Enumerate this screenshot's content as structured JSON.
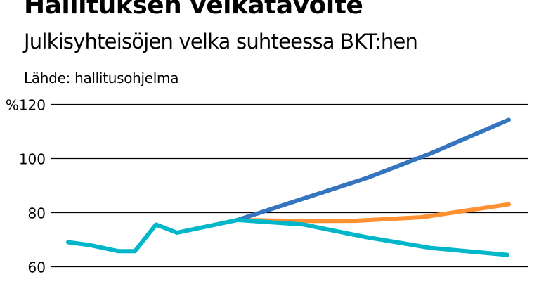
{
  "chart_data": {
    "type": "line",
    "title": "Hallituksen velkatavoite",
    "subtitle": "Julkisyhteisöjen velka suhteessa BKT:hen",
    "source": "Lähde: hallitusohjelma",
    "ylabel": "",
    "xlabel": "",
    "ylim": [
      60,
      120
    ],
    "yticks": [
      60,
      80,
      100,
      120
    ],
    "ytick_labels": [
      "60",
      "80",
      "100",
      "%120"
    ],
    "grid": true,
    "legend": "none",
    "series": [
      {
        "color": "#00b6c9",
        "values": [
          69.1,
          68.0,
          65.8,
          65.8,
          75.6,
          72.6,
          77.3,
          75.6,
          70.9,
          67.0,
          64.4
        ]
      },
      {
        "color": "#3574bf",
        "values": [
          77.3,
          92.8,
          101.8,
          114.3
        ]
      },
      {
        "color": "#ff9133",
        "values": [
          77.3,
          76.9,
          77.0,
          78.3,
          83.1
        ]
      }
    ]
  }
}
